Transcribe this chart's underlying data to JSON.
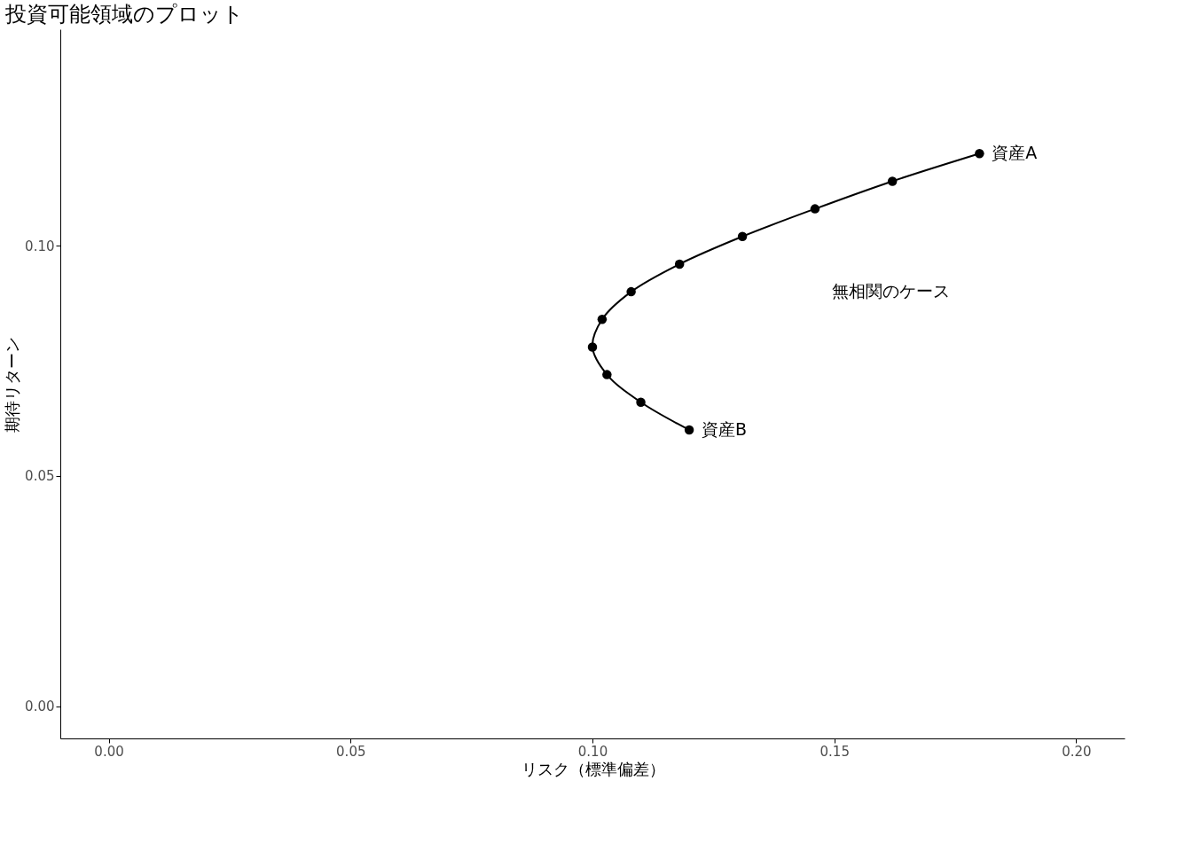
{
  "chart_data": {
    "type": "line",
    "title": "投資可能領域のプロット",
    "xlabel": "リスク（標準偏差）",
    "ylabel": "期待リターン",
    "series": [
      {
        "color": "#000000",
        "x": [
          0.12,
          0.11,
          0.103,
          0.1,
          0.102,
          0.108,
          0.118,
          0.131,
          0.146,
          0.162,
          0.18
        ],
        "values": [
          0.06,
          0.066,
          0.072,
          0.078,
          0.084,
          0.09,
          0.096,
          0.102,
          0.108,
          0.114,
          0.12
        ]
      }
    ],
    "marker": "circle",
    "line_style": "solid",
    "xlim": [
      -0.01,
      0.21
    ],
    "xticks": [
      {
        "value": 0,
        "label": "0.00"
      },
      0.05,
      {
        "value": 0.1,
        "label": "0.10"
      },
      0.15,
      {
        "value": 0.2,
        "label": "0.20"
      }
    ],
    "ylim": [
      -0.007,
      0.147
    ],
    "yticks": [
      {
        "value": 0,
        "label": "0.00"
      },
      0.05,
      {
        "value": 0.1,
        "label": "0.10"
      }
    ],
    "grid": false,
    "annotations": [
      {
        "text": "資産A",
        "x": 0.18,
        "y": 0.12
      },
      {
        "text": "資産B",
        "x": 0.12,
        "y": 0.06
      },
      "無相関のケース"
    ]
  }
}
